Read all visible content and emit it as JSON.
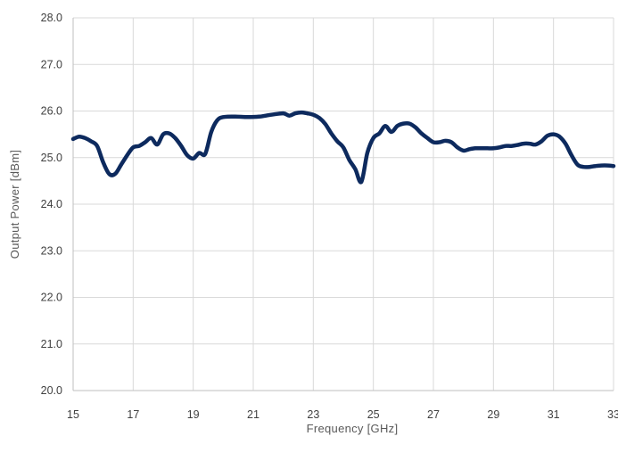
{
  "chart_data": {
    "type": "line",
    "title": "",
    "xlabel": "Frequency [GHz]",
    "ylabel": "Output Power [dBm]",
    "xlim": [
      15,
      33
    ],
    "ylim": [
      20.0,
      28.0
    ],
    "x_ticks": [
      "15",
      "17",
      "19",
      "21",
      "23",
      "25",
      "27",
      "29",
      "31",
      "33"
    ],
    "y_ticks": [
      "20.0",
      "21.0",
      "22.0",
      "23.0",
      "24.0",
      "25.0",
      "26.0",
      "27.0",
      "28.0"
    ],
    "grid": true,
    "legend": "none",
    "series": [
      {
        "color": "#0d2a5e",
        "x": [
          15.0,
          15.2,
          15.4,
          15.6,
          15.8,
          16.0,
          16.2,
          16.4,
          16.6,
          16.8,
          17.0,
          17.2,
          17.4,
          17.6,
          17.8,
          18.0,
          18.2,
          18.4,
          18.6,
          18.8,
          19.0,
          19.2,
          19.4,
          19.6,
          19.8,
          20.0,
          20.4,
          20.8,
          21.2,
          21.6,
          22.0,
          22.2,
          22.4,
          22.6,
          22.8,
          23.0,
          23.2,
          23.4,
          23.6,
          23.8,
          24.0,
          24.2,
          24.4,
          24.6,
          24.8,
          25.0,
          25.2,
          25.4,
          25.6,
          25.8,
          26.0,
          26.2,
          26.4,
          26.6,
          26.8,
          27.0,
          27.2,
          27.4,
          27.6,
          27.8,
          28.0,
          28.2,
          28.4,
          28.6,
          28.8,
          29.0,
          29.2,
          29.4,
          29.6,
          29.8,
          30.0,
          30.2,
          30.4,
          30.6,
          30.8,
          31.0,
          31.2,
          31.4,
          31.6,
          31.8,
          32.0,
          32.2,
          32.4,
          32.6,
          32.8,
          33.0
        ],
        "y": [
          25.4,
          25.45,
          25.42,
          25.35,
          25.25,
          24.9,
          24.65,
          24.65,
          24.85,
          25.05,
          25.22,
          25.25,
          25.33,
          25.42,
          25.28,
          25.5,
          25.52,
          25.42,
          25.25,
          25.05,
          24.98,
          25.1,
          25.08,
          25.55,
          25.8,
          25.87,
          25.88,
          25.87,
          25.88,
          25.92,
          25.95,
          25.9,
          25.95,
          25.97,
          25.95,
          25.92,
          25.85,
          25.72,
          25.52,
          25.35,
          25.22,
          24.95,
          24.75,
          24.48,
          25.1,
          25.42,
          25.52,
          25.68,
          25.55,
          25.68,
          25.73,
          25.73,
          25.65,
          25.52,
          25.42,
          25.33,
          25.33,
          25.36,
          25.33,
          25.22,
          25.15,
          25.18,
          25.2,
          25.2,
          25.2,
          25.2,
          25.22,
          25.25,
          25.25,
          25.27,
          25.3,
          25.3,
          25.28,
          25.35,
          25.47,
          25.5,
          25.45,
          25.3,
          25.05,
          24.85,
          24.8,
          24.8,
          24.82,
          24.83,
          24.83,
          24.82
        ]
      }
    ]
  }
}
